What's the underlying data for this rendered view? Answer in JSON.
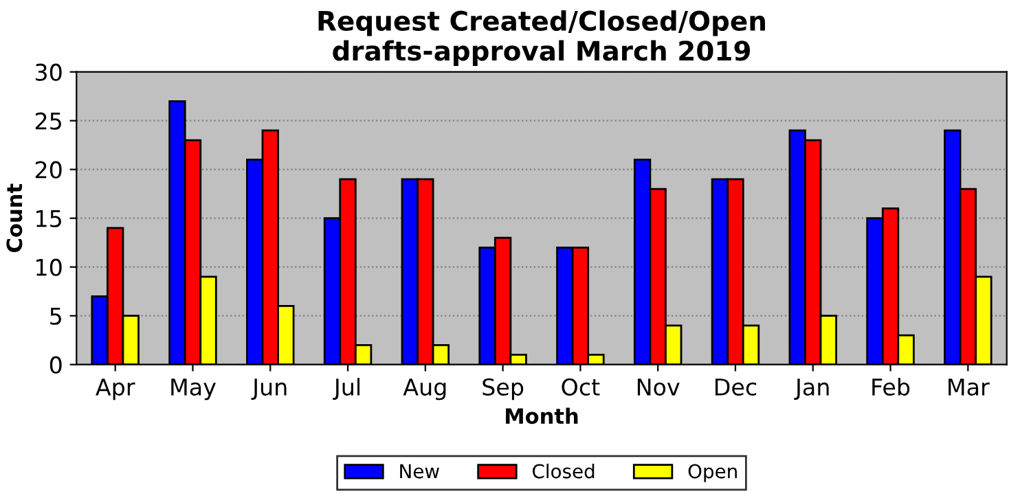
{
  "chart_data": {
    "type": "bar",
    "title": "Request Created/Closed/Open\ndrafts-approval March 2019",
    "xlabel": "Month",
    "ylabel": "Count",
    "categories": [
      "Apr",
      "May",
      "Jun",
      "Jul",
      "Aug",
      "Sep",
      "Oct",
      "Nov",
      "Dec",
      "Jan",
      "Feb",
      "Mar"
    ],
    "series": [
      {
        "name": "New",
        "color": "#0000ff",
        "values": [
          7,
          27,
          21,
          15,
          19,
          12,
          12,
          21,
          19,
          24,
          15,
          24
        ]
      },
      {
        "name": "Closed",
        "color": "#ff0000",
        "values": [
          14,
          23,
          24,
          19,
          19,
          13,
          12,
          18,
          19,
          23,
          16,
          18
        ]
      },
      {
        "name": "Open",
        "color": "#ffff00",
        "values": [
          5,
          9,
          6,
          2,
          2,
          1,
          1,
          4,
          4,
          5,
          3,
          9
        ]
      }
    ],
    "ylim": [
      0,
      30
    ],
    "yticks": [
      0,
      5,
      10,
      15,
      20,
      25,
      30
    ],
    "grid": "y",
    "legend": "bottom"
  }
}
